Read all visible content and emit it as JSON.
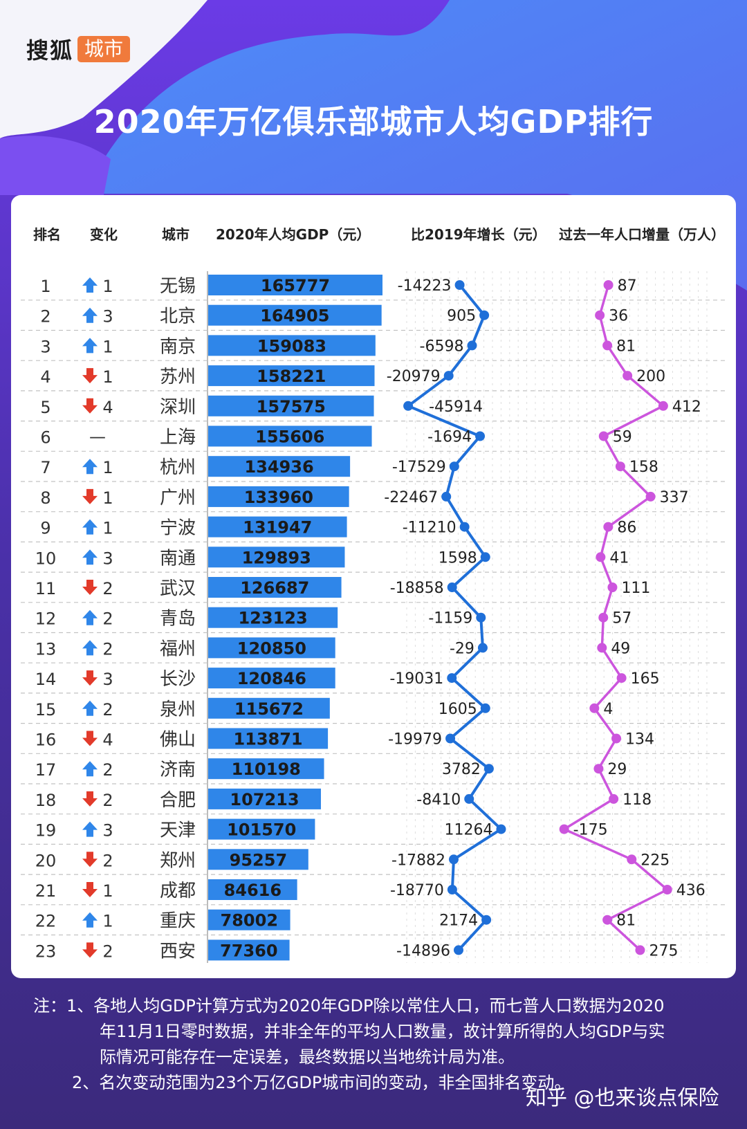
{
  "brand": {
    "name": "搜狐",
    "tag": "城市"
  },
  "title": "2020年万亿俱乐部城市人均GDP排行",
  "headers": {
    "rank": "排名",
    "change": "变化",
    "city": "城市",
    "gdp": "2020年人均GDP（元）",
    "growth": "比2019年增长（元）",
    "population": "过去一年人口增量（万人）"
  },
  "colors": {
    "bar": "#2f86e9",
    "growth_line": "#1f6fd8",
    "population_line": "#cc55dd",
    "arrow_up": "#2f86e9",
    "arrow_down": "#e23a2a",
    "title": "#ffffff"
  },
  "chart_data": {
    "type": "table",
    "columns": [
      "排名",
      "变化",
      "城市",
      "2020年人均GDP（元）",
      "比2019年增长（元）",
      "过去一年人口增量（万人）"
    ],
    "rows": [
      {
        "rank": "1",
        "dir": "up",
        "change": "1",
        "city": "无锡",
        "gdp": 165777,
        "growth": -14223,
        "pop": 87
      },
      {
        "rank": "2",
        "dir": "up",
        "change": "3",
        "city": "北京",
        "gdp": 164905,
        "growth": 905,
        "pop": 36
      },
      {
        "rank": "3",
        "dir": "up",
        "change": "1",
        "city": "南京",
        "gdp": 159083,
        "growth": -6598,
        "pop": 81
      },
      {
        "rank": "4",
        "dir": "down",
        "change": "1",
        "city": "苏州",
        "gdp": 158221,
        "growth": -20979,
        "pop": 200
      },
      {
        "rank": "5",
        "dir": "down",
        "change": "4",
        "city": "深圳",
        "gdp": 157575,
        "growth": -45914,
        "pop": 412
      },
      {
        "rank": "6",
        "dir": "same",
        "change": "—",
        "city": "上海",
        "gdp": 155606,
        "growth": -1694,
        "pop": 59
      },
      {
        "rank": "7",
        "dir": "up",
        "change": "1",
        "city": "杭州",
        "gdp": 134936,
        "growth": -17529,
        "pop": 158
      },
      {
        "rank": "8",
        "dir": "down",
        "change": "1",
        "city": "广州",
        "gdp": 133960,
        "growth": -22467,
        "pop": 337
      },
      {
        "rank": "9",
        "dir": "up",
        "change": "1",
        "city": "宁波",
        "gdp": 131947,
        "growth": -11210,
        "pop": 86
      },
      {
        "rank": "10",
        "dir": "up",
        "change": "3",
        "city": "南通",
        "gdp": 129893,
        "growth": 1598,
        "pop": 41
      },
      {
        "rank": "11",
        "dir": "down",
        "change": "2",
        "city": "武汉",
        "gdp": 126687,
        "growth": -18858,
        "pop": 111
      },
      {
        "rank": "12",
        "dir": "up",
        "change": "2",
        "city": "青岛",
        "gdp": 123123,
        "growth": -1159,
        "pop": 57
      },
      {
        "rank": "13",
        "dir": "up",
        "change": "2",
        "city": "福州",
        "gdp": 120850,
        "growth": -29,
        "pop": 49
      },
      {
        "rank": "14",
        "dir": "down",
        "change": "3",
        "city": "长沙",
        "gdp": 120846,
        "growth": -19031,
        "pop": 165
      },
      {
        "rank": "15",
        "dir": "up",
        "change": "2",
        "city": "泉州",
        "gdp": 115672,
        "growth": 1605,
        "pop": 4
      },
      {
        "rank": "16",
        "dir": "down",
        "change": "4",
        "city": "佛山",
        "gdp": 113871,
        "growth": -19979,
        "pop": 134
      },
      {
        "rank": "17",
        "dir": "up",
        "change": "2",
        "city": "济南",
        "gdp": 110198,
        "growth": 3782,
        "pop": 29
      },
      {
        "rank": "18",
        "dir": "down",
        "change": "2",
        "city": "合肥",
        "gdp": 107213,
        "growth": -8410,
        "pop": 118
      },
      {
        "rank": "19",
        "dir": "up",
        "change": "3",
        "city": "天津",
        "gdp": 101570,
        "growth": 11264,
        "pop": -175
      },
      {
        "rank": "20",
        "dir": "down",
        "change": "2",
        "city": "郑州",
        "gdp": 95257,
        "growth": -17882,
        "pop": 225
      },
      {
        "rank": "21",
        "dir": "down",
        "change": "1",
        "city": "成都",
        "gdp": 84616,
        "growth": -18770,
        "pop": 436
      },
      {
        "rank": "22",
        "dir": "up",
        "change": "1",
        "city": "重庆",
        "gdp": 78002,
        "growth": 2174,
        "pop": 81
      },
      {
        "rank": "23",
        "dir": "down",
        "change": "2",
        "city": "西安",
        "gdp": 77360,
        "growth": -14896,
        "pop": 275
      }
    ]
  },
  "notes": [
    "注：1、各地人均GDP计算方式为2020年GDP除以常住人口，而七普人口数据为2020",
    "年11月1日零时数据，并非全年的平均人口数量，故计算所得的人均GDP与实",
    "际情况可能存在一定误差，最终数据以当地统计局为准。",
    "2、名次变动范围为23个万亿GDP城市间的变动，非全国排名变动。"
  ],
  "watermark": "知乎 @也来谈点保险"
}
